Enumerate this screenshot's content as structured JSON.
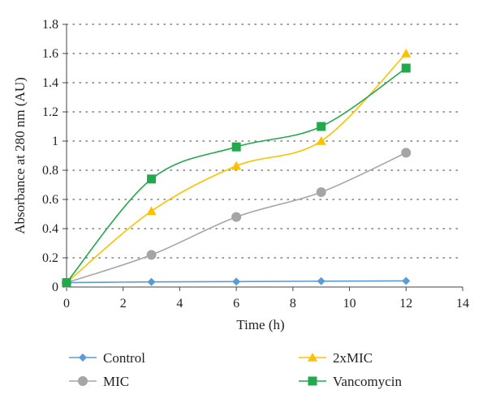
{
  "chart_data": {
    "type": "line",
    "xlabel": "Time (h)",
    "ylabel": "Absorbance at 280 nm (AU)",
    "xlim": [
      0,
      14
    ],
    "ylim": [
      0,
      1.8
    ],
    "x_ticks": [
      0,
      2,
      4,
      6,
      8,
      10,
      12,
      14
    ],
    "y_ticks": [
      0,
      0.2,
      0.4,
      0.6,
      0.8,
      1,
      1.2,
      1.4,
      1.6,
      1.8
    ],
    "x_tick_labels": [
      "0",
      "2",
      "4",
      "6",
      "8",
      "10",
      "12",
      "14"
    ],
    "y_tick_labels": [
      "0",
      "0.2",
      "0.4",
      "0.6",
      "0.8",
      "1",
      "1.2",
      "1.4",
      "1.6",
      "1.8"
    ],
    "grid": "horizontal dotted",
    "legend_position": "bottom",
    "x": [
      0,
      3,
      6,
      9,
      12
    ],
    "series": [
      {
        "name": "Control",
        "values": [
          0.03,
          0.035,
          0.037,
          0.04,
          0.042
        ],
        "color": "#5b9bd5",
        "marker": "diamond"
      },
      {
        "name": "MIC",
        "values": [
          0.03,
          0.22,
          0.48,
          0.65,
          0.92
        ],
        "color": "#a5a5a5",
        "marker": "circle"
      },
      {
        "name": "2xMIC",
        "values": [
          0.03,
          0.52,
          0.83,
          1.0,
          1.6
        ],
        "color": "#ffc000",
        "marker": "triangle"
      },
      {
        "name": "Vancomycin",
        "values": [
          0.03,
          0.74,
          0.96,
          1.1,
          1.5
        ],
        "color": "#22a94b",
        "marker": "square"
      }
    ]
  }
}
